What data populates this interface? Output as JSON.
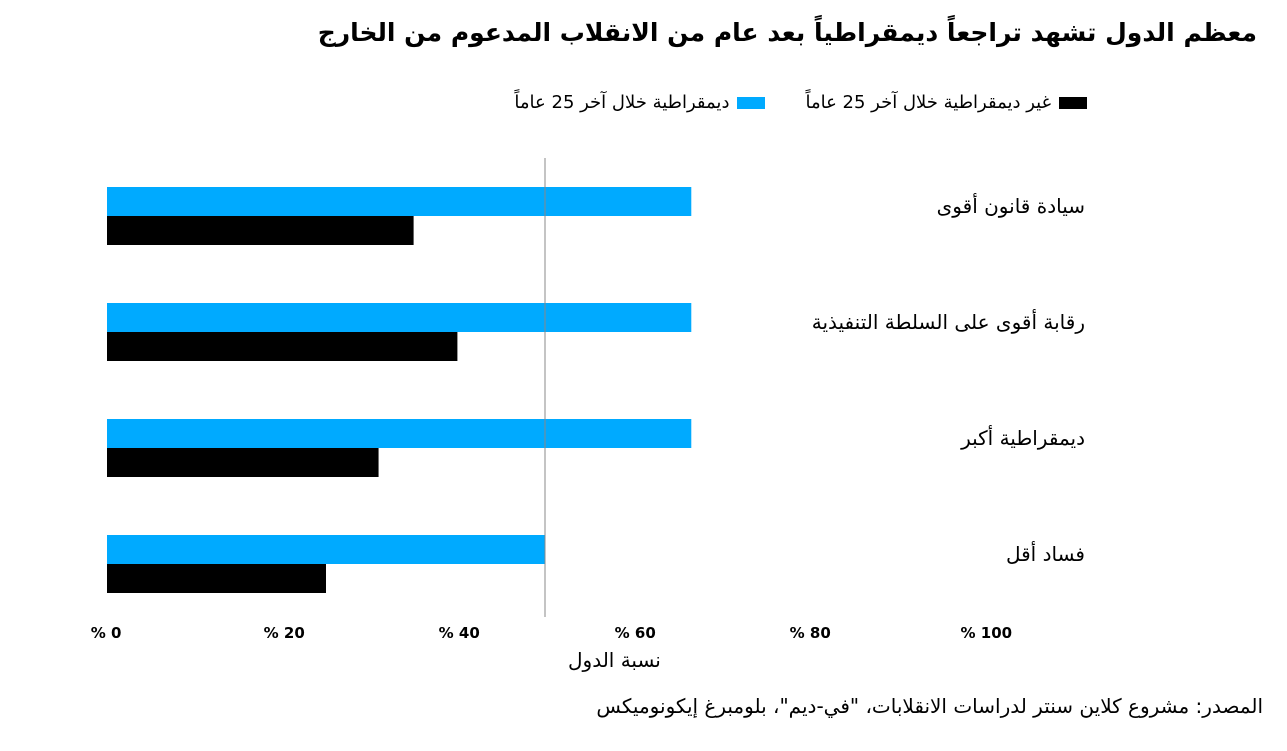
{
  "title": "معظم الدول تشهد تراجعاً ديمقراطياً بعد عام من الانقلاب المدعوم من الخارج",
  "source": "المصدر: مشروع كلاين سنتر لدراسات الانقلابات، \"في-ديم\"، بلومبرغ إيكونوميكس",
  "chart_data": {
    "type": "bar",
    "orientation": "horizontal",
    "title": "معظم الدول تشهد تراجعاً ديمقراطياً بعد عام من الانقلاب المدعوم من الخارج",
    "xlabel": "نسبة الدول",
    "ylabel": "",
    "xlim": [
      0,
      100
    ],
    "xticks": [
      "% 0",
      "% 20",
      "% 40",
      "% 60",
      "% 80",
      "% 100"
    ],
    "reference_line": 50,
    "legend_position": "top",
    "categories": [
      "سيادة قانون أقوى",
      "رقابة أقوى على السلطة التنفيذية",
      "ديمقراطية أكبر",
      "فساد أقل"
    ],
    "series": [
      {
        "name": "ديمقراطية خلال آخر 25 عاماً",
        "color": "#00aaff",
        "values": [
          66.7,
          66.7,
          66.7,
          50
        ]
      },
      {
        "name": "غير ديمقراطية خلال آخر 25 عاماً",
        "color": "#000000",
        "values": [
          35,
          40,
          31,
          25
        ]
      }
    ]
  }
}
